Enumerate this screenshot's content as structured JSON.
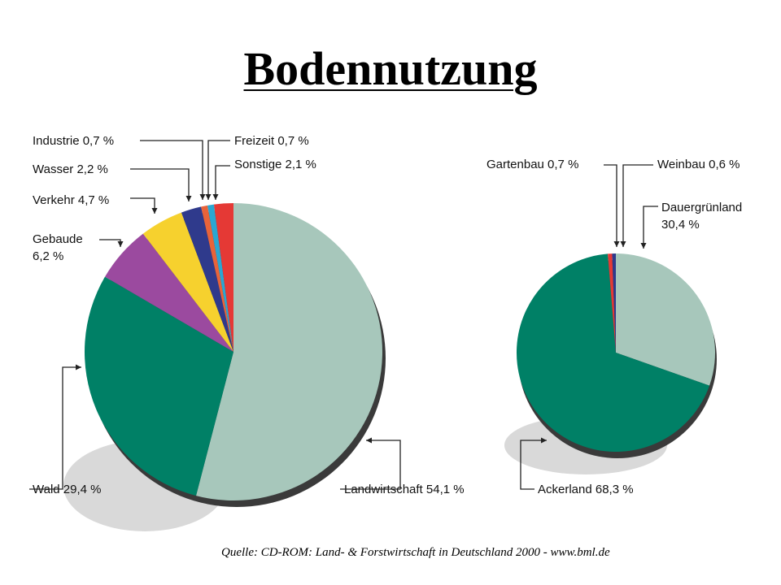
{
  "title": "Bodennutzung",
  "source": "Quelle: CD-ROM: Land- & Forstwirtschaft in Deutschland 2000 - www.bml.de",
  "colors": {
    "landwirtschaft": "#a7c7bb",
    "wald": "#008066",
    "gebaude": "#9b4a9f",
    "verkehr": "#f6d12e",
    "wasser": "#2f3a8c",
    "industrie": "#e8633a",
    "freizeit": "#2aa7d2",
    "sonstige": "#e53935",
    "dauergruenland": "#a7c7bb",
    "ackerland": "#008066",
    "gartenbau": "#e53935",
    "weinbau": "#2f3a8c",
    "shadow": "#d9d9d9",
    "edge": "#3a3a3a"
  },
  "chart_data": [
    {
      "type": "pie",
      "labels": {
        "landwirtschaft": "Landwirtschaft 54,1 %",
        "wald": "Wald 29,4 %",
        "gebaude": [
          "Gebaude",
          "6,2 %"
        ],
        "verkehr": "Verkehr 4,7 %",
        "wasser": "Wasser 2,2 %",
        "industrie": "Industrie 0,7 %",
        "freizeit": "Freizeit 0,7 %",
        "sonstige": "Sonstige 2,1 %"
      },
      "slices": [
        {
          "key": "landwirtschaft",
          "value": 54.1
        },
        {
          "key": "wald",
          "value": 29.4
        },
        {
          "key": "gebaude",
          "value": 6.2
        },
        {
          "key": "verkehr",
          "value": 4.7
        },
        {
          "key": "wasser",
          "value": 2.2
        },
        {
          "key": "industrie",
          "value": 0.7
        },
        {
          "key": "freizeit",
          "value": 0.7
        },
        {
          "key": "sonstige",
          "value": 2.1
        }
      ]
    },
    {
      "type": "pie",
      "labels": {
        "dauergruenland": [
          "Dauergrünland",
          "30,4 %"
        ],
        "ackerland": "Ackerland 68,3 %",
        "gartenbau": "Gartenbau 0,7 %",
        "weinbau": "Weinbau 0,6 %"
      },
      "slices": [
        {
          "key": "dauergruenland",
          "value": 30.4
        },
        {
          "key": "ackerland",
          "value": 68.3
        },
        {
          "key": "gartenbau",
          "value": 0.7
        },
        {
          "key": "weinbau",
          "value": 0.6
        }
      ]
    }
  ]
}
